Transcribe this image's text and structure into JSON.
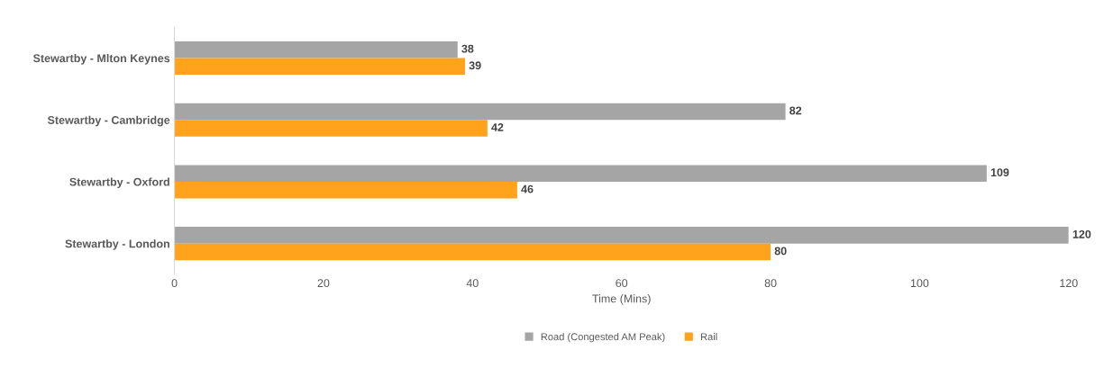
{
  "chart_data": {
    "type": "bar",
    "orientation": "horizontal",
    "xlabel": "Time (Mins)",
    "categories": [
      "Stewartby - Mlton Keynes",
      "Stewartby - Cambridge",
      "Stewartby - Oxford",
      "Stewartby - London"
    ],
    "series": [
      {
        "name": "Road (Congested AM Peak)",
        "color": "#a5a5a5",
        "values": [
          38,
          82,
          109,
          120
        ]
      },
      {
        "name": "Rail",
        "color": "#ffa21c",
        "values": [
          39,
          42,
          46,
          80
        ]
      }
    ],
    "xlim": [
      0,
      120
    ],
    "xticks": [
      0,
      20,
      40,
      60,
      80,
      100,
      120
    ],
    "data_labels": true,
    "grid": false,
    "legend": "bottom"
  }
}
